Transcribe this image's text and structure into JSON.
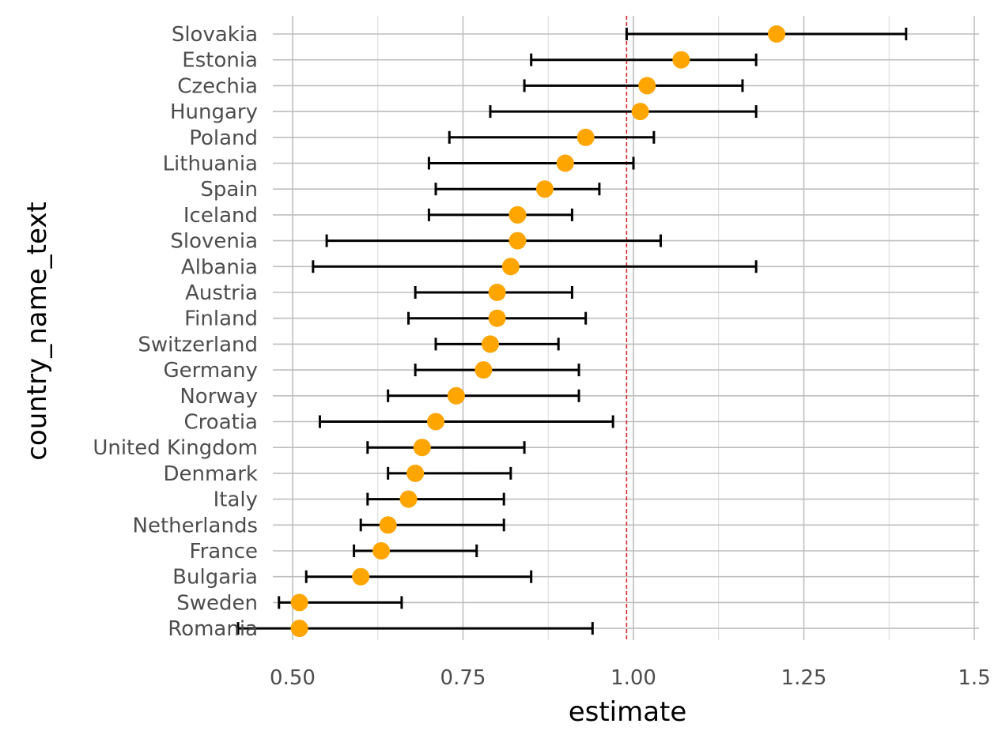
{
  "chart_data": {
    "type": "scatter",
    "subtype": "point-range (estimate with confidence interval)",
    "xlabel": "estimate",
    "ylabel": "country_name_text",
    "xlim": [
      0.5,
      1.5
    ],
    "x_ticks": [
      "0.50",
      "0.75",
      "1.00",
      "1.25",
      "1.5"
    ],
    "reference_line": {
      "x": 0.99,
      "color": "#d62728",
      "style": "dashed"
    },
    "point_color": "#FFA500",
    "errorbar_color": "#000000",
    "grid": true,
    "legend": "none",
    "categories": [
      "Slovakia",
      "Estonia",
      "Czechia",
      "Hungary",
      "Poland",
      "Lithuania",
      "Spain",
      "Iceland",
      "Slovenia",
      "Albania",
      "Austria",
      "Finland",
      "Switzerland",
      "Germany",
      "Norway",
      "Croatia",
      "United Kingdom",
      "Denmark",
      "Italy",
      "Netherlands",
      "France",
      "Bulgaria",
      "Sweden",
      "Romania"
    ],
    "series": [
      {
        "estimate": [
          1.21,
          1.07,
          1.02,
          1.01,
          0.93,
          0.9,
          0.87,
          0.83,
          0.83,
          0.82,
          0.8,
          0.8,
          0.79,
          0.78,
          0.74,
          0.71,
          0.69,
          0.68,
          0.67,
          0.64,
          0.63,
          0.6,
          0.51,
          0.51
        ],
        "conf_low": [
          0.99,
          0.85,
          0.84,
          0.79,
          0.73,
          0.7,
          0.71,
          0.7,
          0.55,
          0.53,
          0.68,
          0.67,
          0.71,
          0.68,
          0.64,
          0.54,
          0.61,
          0.64,
          0.61,
          0.6,
          0.59,
          0.52,
          0.48,
          0.42
        ],
        "conf_high": [
          1.4,
          1.18,
          1.16,
          1.18,
          1.03,
          1.0,
          0.95,
          0.91,
          1.04,
          1.18,
          0.91,
          0.93,
          0.89,
          0.92,
          0.92,
          0.97,
          0.84,
          0.82,
          0.81,
          0.81,
          0.77,
          0.85,
          0.66,
          0.94
        ]
      }
    ]
  }
}
